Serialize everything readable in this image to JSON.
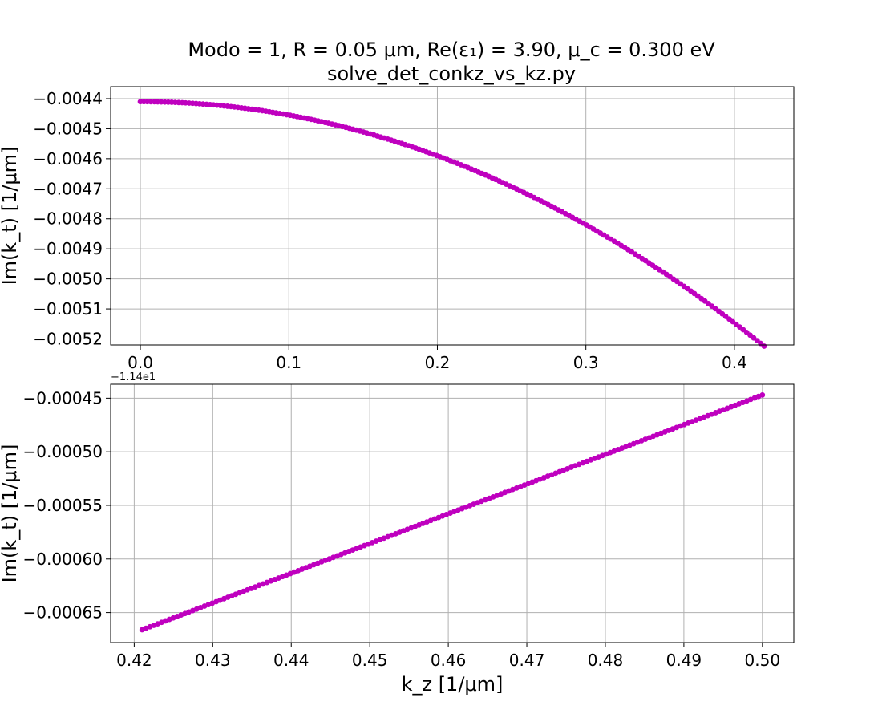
{
  "figure": {
    "title_line1": "Modo = 1, R = 0.05 μm, Re(ε₁) = 3.90, μ_c = 0.300 eV",
    "title_line2": "solve_det_conkz_vs_kz.py"
  },
  "colors": {
    "series": "#bf00bf",
    "grid": "#b0b0b0",
    "frame": "#000000"
  },
  "chart_data": [
    {
      "type": "scatter",
      "ylabel": "Im(k_t) [1/μm]",
      "xlabel": "",
      "xlim": [
        -0.02,
        0.44
      ],
      "ylim": [
        -0.00522,
        -0.00436
      ],
      "grid": true,
      "xticks": [
        0.0,
        0.1,
        0.2,
        0.3,
        0.4
      ],
      "xtick_labels": [
        "0.0",
        "0.1",
        "0.2",
        "0.3",
        "0.4"
      ],
      "yticks": [
        -0.0044,
        -0.0045,
        -0.0046,
        -0.0047,
        -0.0048,
        -0.0049,
        -0.005,
        -0.0051,
        -0.0052
      ],
      "ytick_labels": [
        "−0.0044",
        "−0.0045",
        "−0.0046",
        "−0.0047",
        "−0.0048",
        "−0.0049",
        "−0.0050",
        "−0.0051",
        "−0.0052"
      ],
      "curve": {
        "x_start": 0.0,
        "x_end": 0.42,
        "n_points": 180,
        "y_at_0": -0.00441,
        "quad_coef": -0.004405,
        "cubic_coef": -0.0005
      },
      "x_sample": [
        0.0,
        0.1,
        0.2,
        0.3,
        0.4,
        0.42
      ],
      "y_sample": [
        -0.00441,
        -0.004455,
        -0.00459,
        -0.004818,
        -0.005137,
        -0.005224
      ]
    },
    {
      "type": "scatter",
      "ylabel": "Im(k_t) [1/μm]",
      "xlabel": "k_z [1/μm]",
      "xlim": [
        0.417,
        0.504
      ],
      "ylim": [
        -0.000678,
        -0.000437
      ],
      "offset_text": "−1.14e1",
      "grid": true,
      "xticks": [
        0.42,
        0.43,
        0.44,
        0.45,
        0.46,
        0.47,
        0.48,
        0.49,
        0.5
      ],
      "xtick_labels": [
        "0.42",
        "0.43",
        "0.44",
        "0.45",
        "0.46",
        "0.47",
        "0.48",
        "0.49",
        "0.50"
      ],
      "yticks": [
        -0.00045,
        -0.0005,
        -0.00055,
        -0.0006,
        -0.00065
      ],
      "ytick_labels": [
        "−0.00045",
        "−0.00050",
        "−0.00055",
        "−0.00060",
        "−0.00065"
      ],
      "curve": {
        "x_start": 0.421,
        "x_end": 0.5,
        "n_points": 160,
        "y_start": -0.000666,
        "y_end": -0.000447
      },
      "x_sample": [
        0.421,
        0.44,
        0.46,
        0.48,
        0.5
      ],
      "y_sample": [
        -0.000666,
        -0.000614,
        -0.000558,
        -0.000502,
        -0.000447
      ]
    }
  ]
}
